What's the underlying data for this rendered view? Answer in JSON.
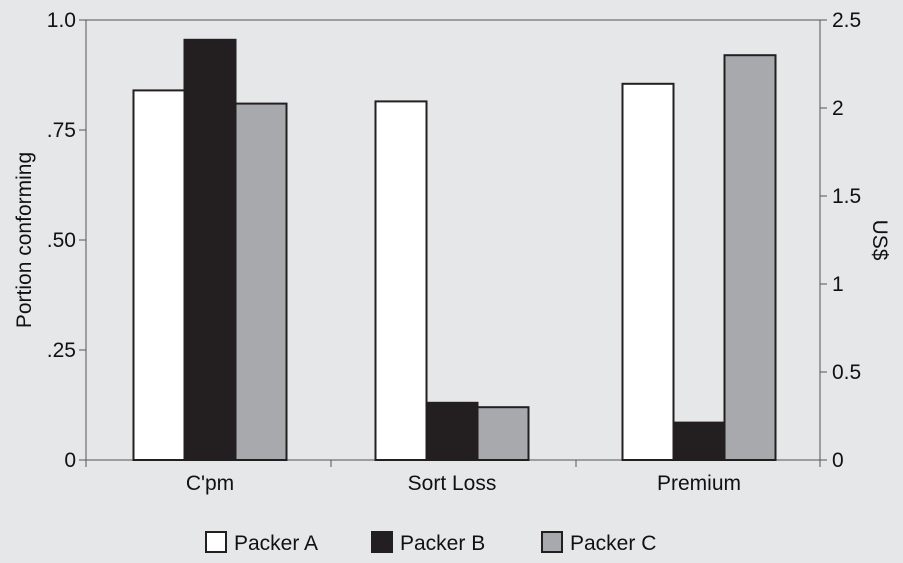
{
  "chart_data": {
    "type": "bar",
    "categories": [
      "C'pm",
      "Sort Loss",
      "Premium"
    ],
    "series": [
      {
        "name": "Packer A",
        "color": "#ffffff",
        "values": [
          0.84,
          0.815,
          0.855
        ]
      },
      {
        "name": "Packer B",
        "color": "#231f20",
        "values": [
          0.955,
          0.13,
          0.085
        ]
      },
      {
        "name": "Packer C",
        "color": "#a7a9ac",
        "values": [
          0.81,
          0.12,
          0.92
        ]
      }
    ],
    "ylabel": "Portion conforming",
    "y2label": "US$",
    "ylim": [
      0,
      1.0
    ],
    "y2lim": [
      0,
      2.5
    ],
    "yticks": [
      "0",
      ".25",
      ".50",
      ".75",
      "1.0"
    ],
    "y2ticks": [
      "0",
      "0.5",
      "1",
      "1.5",
      "2",
      "2.5"
    ],
    "grid": false,
    "legend_position": "bottom",
    "background": "#e6e7e8"
  }
}
